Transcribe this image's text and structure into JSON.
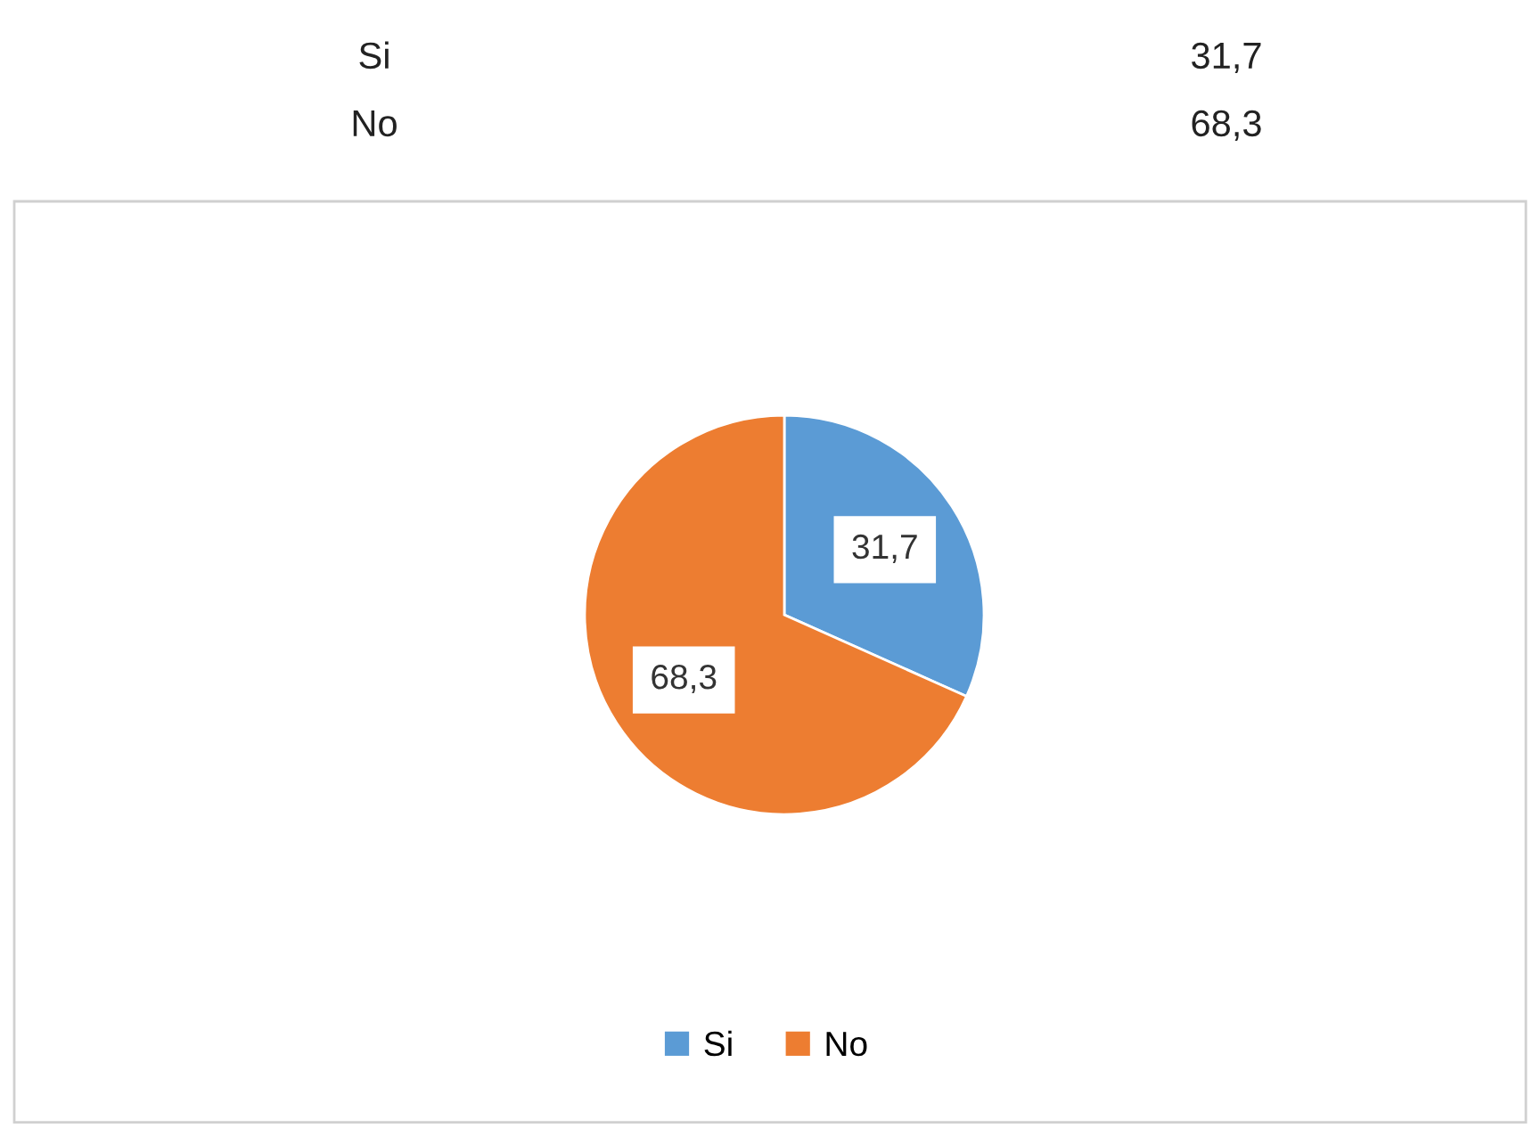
{
  "chart_data": {
    "type": "pie",
    "categories": [
      "Si",
      "No"
    ],
    "values": [
      31.7,
      68.3
    ],
    "colors": [
      "#5b9bd5",
      "#ed7d31"
    ],
    "value_labels": [
      "31,7",
      "68,3"
    ],
    "legend": "bottom"
  }
}
